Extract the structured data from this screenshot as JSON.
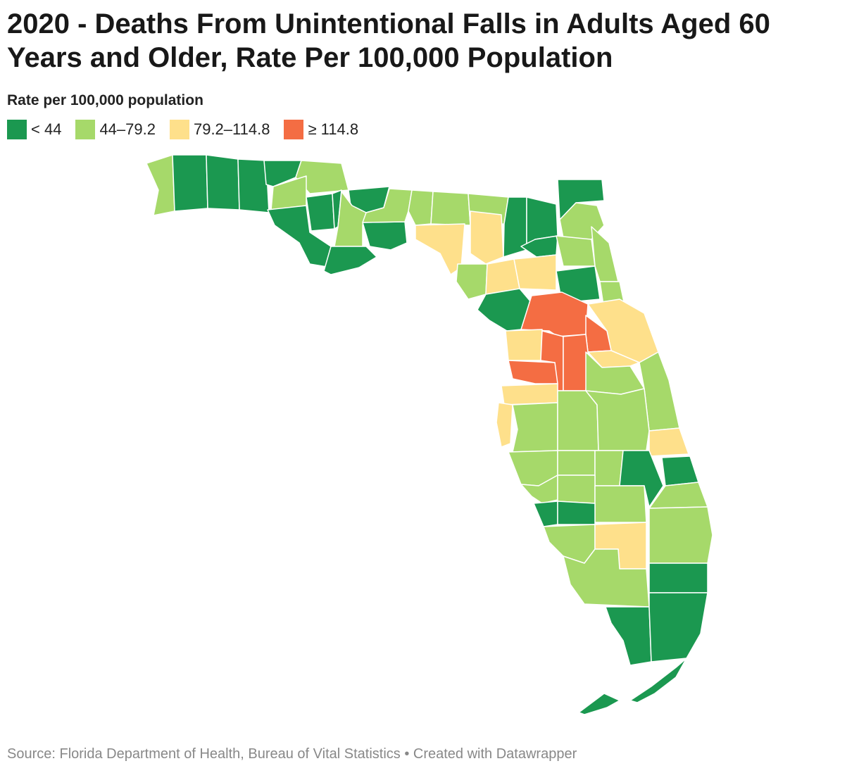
{
  "title": "2020 - Deaths From Unintentional Falls in Adults Aged 60 Years and Older, Rate Per 100,000 Population",
  "legend": {
    "title": "Rate per 100,000 population",
    "items": [
      {
        "label": "< 44",
        "color": "#1b9850"
      },
      {
        "label": "44–79.2",
        "color": "#a6d96a"
      },
      {
        "label": "79.2–114.8",
        "color": "#fee08b"
      },
      {
        "label": "≥ 114.8",
        "color": "#f46d43"
      }
    ]
  },
  "map": {
    "region": "Florida counties",
    "category_colors": {
      "low": "#1b9850",
      "mid_low": "#a6d96a",
      "mid_high": "#fee08b",
      "high": "#f46d43"
    }
  },
  "footer": {
    "source": "Source: Florida Department of Health, Bureau of Vital Statistics • Created with Datawrapper"
  }
}
